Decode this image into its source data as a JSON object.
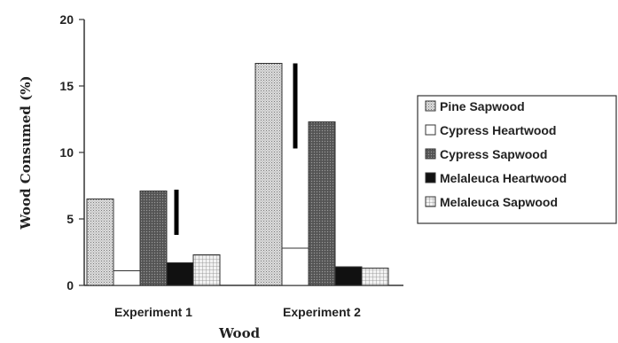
{
  "chart_data": {
    "type": "bar",
    "title": "",
    "xlabel": "Wood",
    "ylabel": "Wood Consumed (%)",
    "ylim": [
      0,
      20
    ],
    "yticks": [
      "0",
      "5",
      "10",
      "15",
      "20"
    ],
    "categories": [
      "Experiment 1",
      "Experiment 2"
    ],
    "series": [
      {
        "name": "Pine Sapwood",
        "values": [
          6.5,
          16.7
        ],
        "color": "#c8c8c8",
        "pattern": "fine-dots"
      },
      {
        "name": "Cypress Heartwood",
        "values": [
          1.1,
          2.8
        ],
        "color": "#ffffff",
        "pattern": "none"
      },
      {
        "name": "Cypress Sapwood",
        "values": [
          7.1,
          12.3
        ],
        "color": "#6a6a6a",
        "pattern": "dark-dots"
      },
      {
        "name": "Melaleuca Heartwood",
        "values": [
          1.7,
          1.4
        ],
        "color": "#111111",
        "pattern": "solid"
      },
      {
        "name": "Melaleuca Sapwood",
        "values": [
          2.3,
          1.3
        ],
        "color": "#d8d8d8",
        "pattern": "grid"
      }
    ],
    "error_bars": [
      {
        "category": "Experiment 1",
        "low": 3.8,
        "high": 7.2
      },
      {
        "category": "Experiment 2",
        "low": 10.3,
        "high": 16.7
      }
    ],
    "grid": false,
    "legend_position": "right"
  }
}
